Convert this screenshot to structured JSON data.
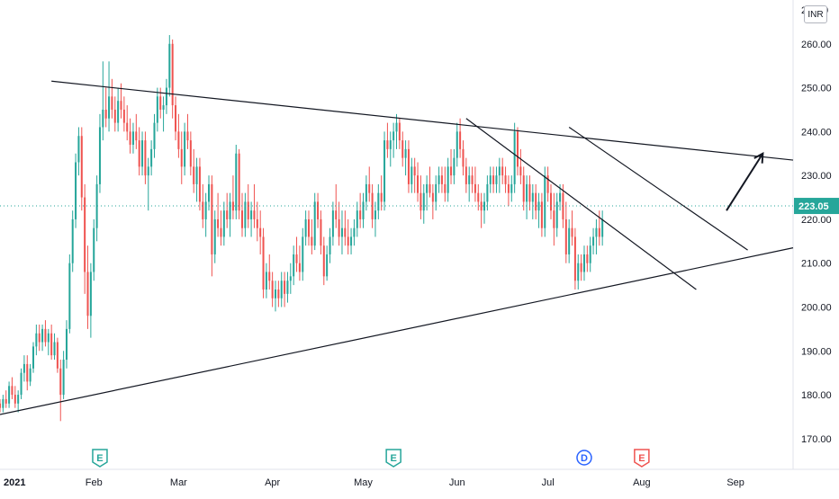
{
  "chart_data": {
    "type": "candlestick",
    "currency": "INR",
    "last_price": "223.05",
    "y_top_label_partial": "2",
    "y_top_label_partial_right": "0",
    "y_ticks": [
      "260.00",
      "250.00",
      "240.00",
      "230.00",
      "220.00",
      "210.00",
      "200.00",
      "190.00",
      "180.00",
      "170.00"
    ],
    "y_tick_values": [
      260,
      250,
      240,
      230,
      220,
      210,
      200,
      190,
      180,
      170
    ],
    "ylim": [
      163,
      270
    ],
    "x_labels": [
      "2021",
      "Feb",
      "Mar",
      "Apr",
      "May",
      "Jun",
      "Jul",
      "Aug",
      "Sep"
    ],
    "x_label_days": [
      0,
      31,
      59,
      90,
      120,
      151,
      181,
      212,
      243
    ],
    "xlim_days": [
      0,
      262
    ],
    "colors": {
      "up": "#26a69a",
      "down": "#ef5350",
      "line": "#131722",
      "price_line": "#26a69a"
    },
    "trendlines": [
      {
        "from": [
          17,
          251.5
        ],
        "to": [
          262,
          233.5
        ]
      },
      {
        "from": [
          0,
          175.5
        ],
        "to": [
          262,
          213.5
        ]
      },
      {
        "from": [
          154,
          243
        ],
        "to": [
          230,
          204
        ]
      },
      {
        "from": [
          188,
          241
        ],
        "to": [
          247,
          213
        ]
      }
    ],
    "arrow": {
      "from": [
        240,
        222
      ],
      "to": [
        252,
        235
      ]
    },
    "events": [
      {
        "day": 33,
        "letter": "E",
        "type": "earnings",
        "color": "#26a69a"
      },
      {
        "day": 130,
        "letter": "E",
        "type": "earnings",
        "color": "#26a69a"
      },
      {
        "day": 193,
        "letter": "D",
        "type": "dividend",
        "color": "#2962ff"
      },
      {
        "day": 212,
        "letter": "E",
        "type": "earnings",
        "color": "#ef5350"
      }
    ],
    "candles": [
      [
        0,
        178,
        179,
        176,
        177
      ],
      [
        1,
        177,
        180,
        176,
        179
      ],
      [
        2,
        179,
        181,
        177,
        178
      ],
      [
        3,
        178,
        183,
        177,
        182
      ],
      [
        4,
        182,
        184,
        179,
        180
      ],
      [
        5,
        180,
        182,
        177,
        178
      ],
      [
        6,
        178,
        181,
        176,
        180
      ],
      [
        7,
        180,
        186,
        179,
        185
      ],
      [
        8,
        185,
        189,
        183,
        187
      ],
      [
        9,
        187,
        189,
        181,
        183
      ],
      [
        10,
        183,
        187,
        182,
        186
      ],
      [
        11,
        186,
        192,
        185,
        191
      ],
      [
        12,
        191,
        196,
        189,
        194
      ],
      [
        13,
        194,
        196,
        190,
        192
      ],
      [
        14,
        192,
        196,
        190,
        195
      ],
      [
        15,
        195,
        197,
        191,
        192
      ],
      [
        16,
        192,
        195,
        189,
        194
      ],
      [
        17,
        194,
        196,
        188,
        189
      ],
      [
        18,
        189,
        194,
        188,
        192
      ],
      [
        19,
        192,
        193,
        185,
        186
      ],
      [
        20,
        186,
        188,
        174,
        180
      ],
      [
        21,
        180,
        190,
        179,
        188
      ],
      [
        22,
        188,
        197,
        186,
        195
      ],
      [
        23,
        195,
        212,
        194,
        210
      ],
      [
        24,
        210,
        222,
        208,
        220
      ],
      [
        25,
        220,
        235,
        218,
        233
      ],
      [
        26,
        233,
        241,
        230,
        239
      ],
      [
        27,
        239,
        241,
        222,
        225
      ],
      [
        28,
        225,
        228,
        203,
        208
      ],
      [
        29,
        208,
        214,
        195,
        198
      ],
      [
        30,
        198,
        210,
        193,
        208
      ],
      [
        31,
        208,
        220,
        206,
        218
      ],
      [
        32,
        218,
        230,
        215,
        228
      ],
      [
        33,
        228,
        244,
        226,
        241
      ],
      [
        34,
        241,
        256,
        238,
        245
      ],
      [
        35,
        245,
        250,
        241,
        243
      ],
      [
        36,
        243,
        256,
        240,
        248
      ],
      [
        37,
        248,
        252,
        243,
        245
      ],
      [
        38,
        245,
        248,
        240,
        242
      ],
      [
        39,
        242,
        250,
        240,
        247
      ],
      [
        40,
        247,
        251,
        243,
        245
      ],
      [
        41,
        245,
        248,
        240,
        242
      ],
      [
        42,
        242,
        246,
        238,
        240
      ],
      [
        43,
        240,
        243,
        235,
        237
      ],
      [
        44,
        237,
        242,
        235,
        240
      ],
      [
        45,
        240,
        244,
        236,
        238
      ],
      [
        46,
        238,
        241,
        230,
        232
      ],
      [
        47,
        232,
        240,
        230,
        238
      ],
      [
        48,
        238,
        240,
        228,
        230
      ],
      [
        49,
        230,
        234,
        222,
        232
      ],
      [
        50,
        232,
        238,
        230,
        236
      ],
      [
        51,
        236,
        244,
        234,
        242
      ],
      [
        52,
        242,
        250,
        240,
        248
      ],
      [
        53,
        248,
        250,
        243,
        245
      ],
      [
        54,
        245,
        248,
        240,
        246
      ],
      [
        55,
        246,
        252,
        244,
        250
      ],
      [
        56,
        250,
        262,
        248,
        260
      ],
      [
        57,
        260,
        261,
        243,
        246
      ],
      [
        58,
        246,
        248,
        238,
        240
      ],
      [
        59,
        240,
        244,
        234,
        236
      ],
      [
        60,
        236,
        240,
        228,
        232
      ],
      [
        61,
        232,
        242,
        230,
        240
      ],
      [
        62,
        240,
        244,
        236,
        238
      ],
      [
        63,
        238,
        240,
        230,
        232
      ],
      [
        64,
        232,
        236,
        226,
        228
      ],
      [
        65,
        228,
        234,
        224,
        232
      ],
      [
        66,
        232,
        234,
        222,
        224
      ],
      [
        67,
        224,
        228,
        218,
        220
      ],
      [
        68,
        220,
        226,
        216,
        224
      ],
      [
        69,
        224,
        230,
        222,
        228
      ],
      [
        70,
        228,
        230,
        207,
        212
      ],
      [
        71,
        212,
        222,
        210,
        220
      ],
      [
        72,
        220,
        226,
        216,
        218
      ],
      [
        73,
        218,
        222,
        214,
        216
      ],
      [
        74,
        216,
        224,
        214,
        222
      ],
      [
        75,
        222,
        226,
        218,
        220
      ],
      [
        76,
        220,
        226,
        216,
        224
      ],
      [
        77,
        224,
        230,
        220,
        222
      ],
      [
        78,
        222,
        237,
        220,
        235
      ],
      [
        79,
        235,
        236,
        220,
        222
      ],
      [
        80,
        222,
        226,
        216,
        218
      ],
      [
        81,
        218,
        226,
        216,
        224
      ],
      [
        82,
        224,
        228,
        218,
        220
      ],
      [
        83,
        220,
        224,
        216,
        222
      ],
      [
        84,
        222,
        228,
        218,
        220
      ],
      [
        85,
        220,
        224,
        215,
        218
      ],
      [
        86,
        218,
        222,
        212,
        216
      ],
      [
        87,
        216,
        218,
        202,
        204
      ],
      [
        88,
        204,
        210,
        202,
        208
      ],
      [
        89,
        208,
        212,
        204,
        206
      ],
      [
        90,
        206,
        208,
        200,
        202
      ],
      [
        91,
        202,
        206,
        199,
        204
      ],
      [
        92,
        204,
        206,
        200,
        202
      ],
      [
        93,
        202,
        208,
        200,
        206
      ],
      [
        94,
        206,
        208,
        200,
        203
      ],
      [
        95,
        203,
        208,
        201,
        206
      ],
      [
        96,
        206,
        210,
        203,
        207
      ],
      [
        97,
        207,
        214,
        205,
        212
      ],
      [
        98,
        212,
        216,
        208,
        210
      ],
      [
        99,
        210,
        214,
        206,
        208
      ],
      [
        100,
        208,
        218,
        206,
        216
      ],
      [
        101,
        216,
        222,
        214,
        220
      ],
      [
        102,
        220,
        222,
        214,
        216
      ],
      [
        103,
        216,
        220,
        212,
        214
      ],
      [
        104,
        214,
        226,
        213,
        224
      ],
      [
        105,
        224,
        226,
        218,
        220
      ],
      [
        106,
        220,
        222,
        212,
        214
      ],
      [
        107,
        214,
        216,
        205,
        207
      ],
      [
        108,
        207,
        214,
        206,
        212
      ],
      [
        109,
        212,
        218,
        210,
        216
      ],
      [
        110,
        216,
        224,
        214,
        222
      ],
      [
        111,
        222,
        228,
        218,
        220
      ],
      [
        112,
        220,
        224,
        214,
        216
      ],
      [
        113,
        216,
        222,
        212,
        218
      ],
      [
        114,
        218,
        222,
        214,
        216
      ],
      [
        115,
        216,
        220,
        212,
        214
      ],
      [
        116,
        214,
        218,
        212,
        216
      ],
      [
        117,
        216,
        220,
        214,
        218
      ],
      [
        118,
        218,
        224,
        216,
        222
      ],
      [
        119,
        222,
        226,
        218,
        220
      ],
      [
        120,
        220,
        226,
        218,
        224
      ],
      [
        121,
        224,
        230,
        222,
        228
      ],
      [
        122,
        228,
        232,
        224,
        226
      ],
      [
        123,
        226,
        228,
        218,
        220
      ],
      [
        124,
        220,
        224,
        216,
        222
      ],
      [
        125,
        222,
        228,
        220,
        226
      ],
      [
        126,
        226,
        230,
        222,
        224
      ],
      [
        127,
        224,
        240,
        222,
        238
      ],
      [
        128,
        238,
        242,
        234,
        236
      ],
      [
        129,
        236,
        240,
        232,
        238
      ],
      [
        130,
        238,
        242,
        234,
        240
      ],
      [
        131,
        240,
        244,
        236,
        242
      ],
      [
        132,
        242,
        243,
        236,
        238
      ],
      [
        133,
        238,
        240,
        232,
        234
      ],
      [
        134,
        234,
        238,
        230,
        236
      ],
      [
        135,
        236,
        238,
        226,
        228
      ],
      [
        136,
        228,
        234,
        226,
        232
      ],
      [
        137,
        232,
        234,
        226,
        230
      ],
      [
        138,
        230,
        233,
        224,
        226
      ],
      [
        139,
        226,
        230,
        220,
        222
      ],
      [
        140,
        222,
        228,
        219,
        226
      ],
      [
        141,
        226,
        230,
        222,
        228
      ],
      [
        142,
        228,
        232,
        225,
        226
      ],
      [
        143,
        226,
        228,
        220,
        224
      ],
      [
        144,
        224,
        230,
        222,
        228
      ],
      [
        145,
        228,
        232,
        226,
        230
      ],
      [
        146,
        230,
        232,
        226,
        228
      ],
      [
        147,
        228,
        232,
        224,
        226
      ],
      [
        148,
        226,
        234,
        224,
        232
      ],
      [
        149,
        232,
        236,
        228,
        230
      ],
      [
        150,
        230,
        236,
        228,
        234
      ],
      [
        151,
        234,
        242,
        232,
        240
      ],
      [
        152,
        240,
        243,
        234,
        236
      ],
      [
        153,
        236,
        238,
        230,
        232
      ],
      [
        154,
        232,
        234,
        226,
        228
      ],
      [
        155,
        228,
        232,
        224,
        230
      ],
      [
        156,
        230,
        232,
        226,
        228
      ],
      [
        157,
        228,
        232,
        224,
        226
      ],
      [
        158,
        226,
        228,
        222,
        224
      ],
      [
        159,
        224,
        226,
        218,
        222
      ],
      [
        160,
        222,
        226,
        219,
        224
      ],
      [
        161,
        224,
        230,
        222,
        228
      ],
      [
        162,
        228,
        232,
        226,
        230
      ],
      [
        163,
        230,
        232,
        226,
        228
      ],
      [
        164,
        228,
        232,
        226,
        230
      ],
      [
        165,
        230,
        234,
        226,
        232
      ],
      [
        166,
        232,
        234,
        228,
        230
      ],
      [
        167,
        230,
        232,
        226,
        228
      ],
      [
        168,
        228,
        230,
        223,
        226
      ],
      [
        169,
        226,
        230,
        224,
        228
      ],
      [
        170,
        228,
        242,
        226,
        240
      ],
      [
        171,
        240,
        241,
        230,
        232
      ],
      [
        172,
        232,
        236,
        228,
        230
      ],
      [
        173,
        230,
        232,
        222,
        224
      ],
      [
        174,
        224,
        230,
        220,
        228
      ],
      [
        175,
        228,
        230,
        222,
        224
      ],
      [
        176,
        224,
        228,
        220,
        226
      ],
      [
        177,
        226,
        228,
        220,
        222
      ],
      [
        178,
        222,
        226,
        218,
        224
      ],
      [
        179,
        224,
        226,
        216,
        218
      ],
      [
        180,
        218,
        232,
        216,
        230
      ],
      [
        181,
        230,
        232,
        224,
        226
      ],
      [
        182,
        226,
        228,
        220,
        222
      ],
      [
        183,
        222,
        226,
        214,
        218
      ],
      [
        184,
        218,
        226,
        216,
        224
      ],
      [
        185,
        224,
        228,
        222,
        226
      ],
      [
        186,
        226,
        228,
        218,
        220
      ],
      [
        187,
        220,
        224,
        210,
        212
      ],
      [
        188,
        212,
        220,
        210,
        218
      ],
      [
        189,
        218,
        222,
        214,
        216
      ],
      [
        190,
        216,
        218,
        204,
        206
      ],
      [
        191,
        206,
        212,
        204,
        210
      ],
      [
        192,
        210,
        212,
        206,
        208
      ],
      [
        193,
        208,
        214,
        206,
        212
      ],
      [
        194,
        212,
        214,
        208,
        210
      ],
      [
        195,
        210,
        216,
        208,
        214
      ],
      [
        196,
        214,
        218,
        212,
        216
      ],
      [
        197,
        216,
        220,
        212,
        218
      ],
      [
        198,
        218,
        222,
        214,
        216
      ],
      [
        199,
        216,
        222,
        214,
        220
      ]
    ]
  }
}
